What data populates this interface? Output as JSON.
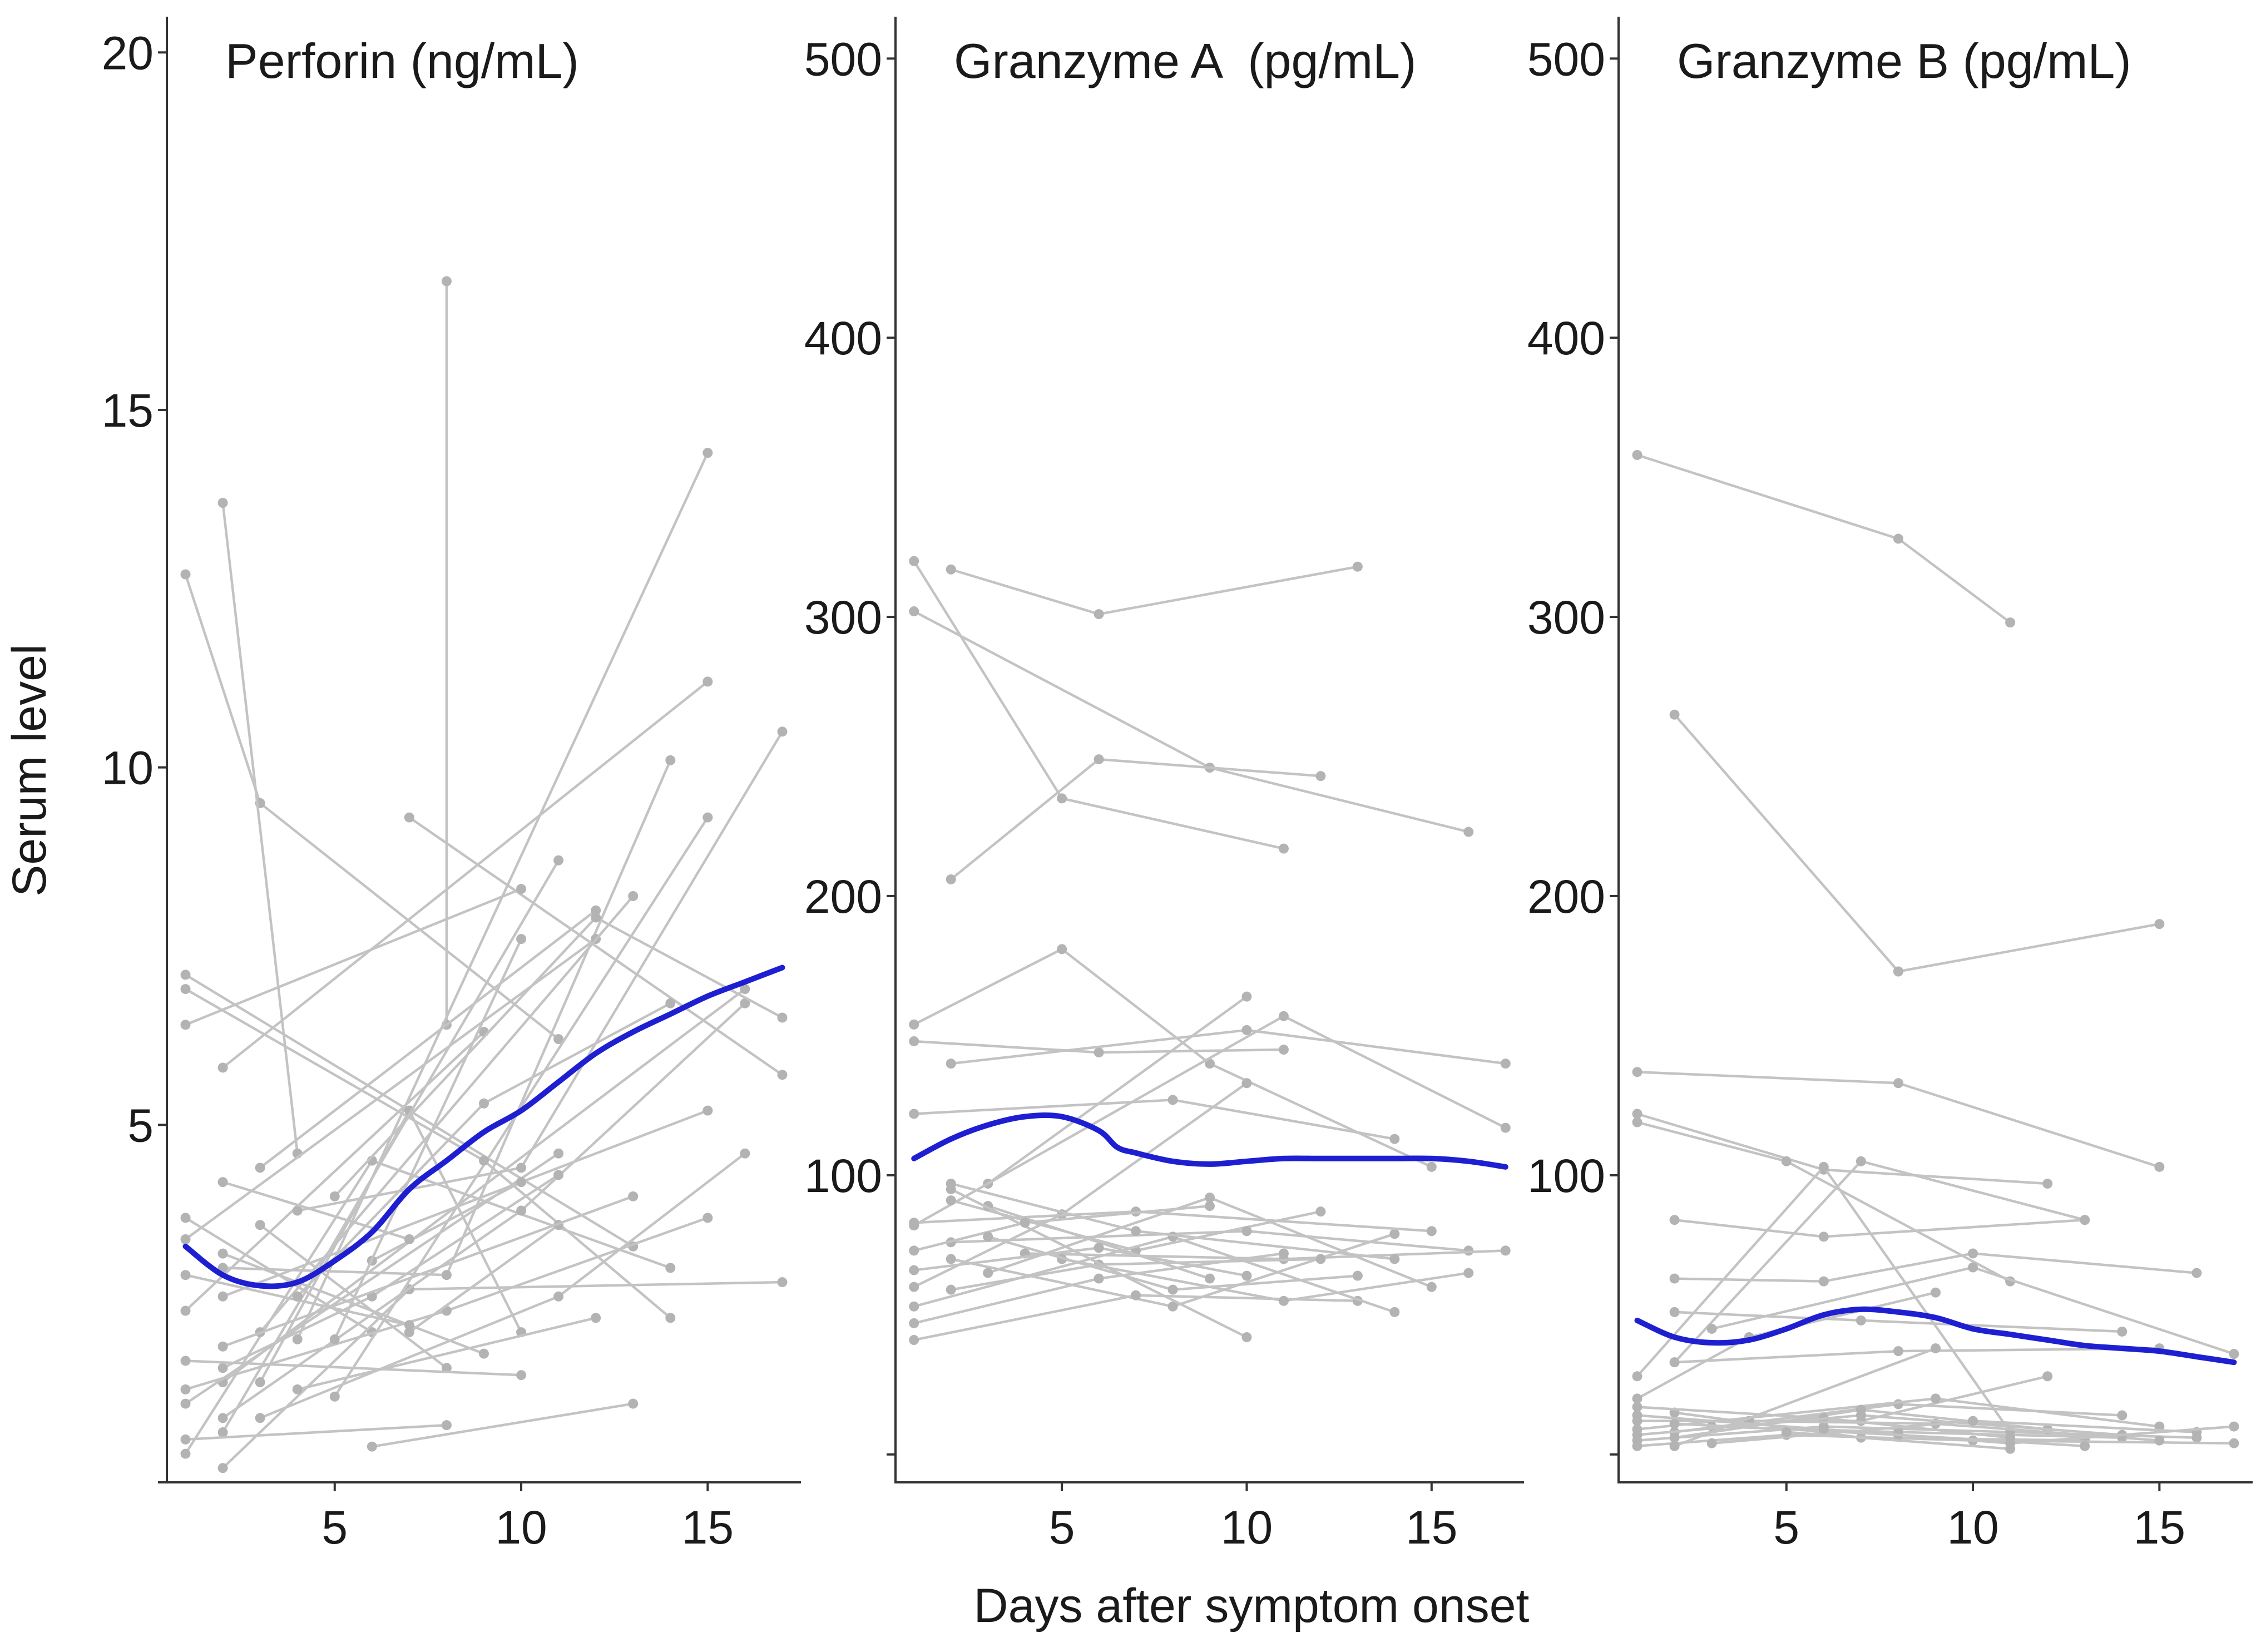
{
  "colors": {
    "subject": "#c3c3c3",
    "point": "#b3b3b3",
    "trend": "#1f1fd2",
    "axis": "#333333"
  },
  "figure": {
    "ylabel": "Serum level",
    "xlabel": "Days after symptom onset"
  },
  "chart_data": [
    {
      "type": "line",
      "title": "Perforin (ng/mL)",
      "ylim": [
        0,
        20.5
      ],
      "xlim": [
        0.5,
        17.5
      ],
      "yticks": [
        5,
        10,
        15,
        20
      ],
      "yminor": [
        0
      ],
      "xticks": [
        5,
        10,
        15
      ],
      "trend": {
        "name": "LOESS",
        "x": [
          1,
          2,
          3,
          4,
          5,
          6,
          7,
          8,
          9,
          10,
          11,
          12,
          13,
          14,
          15,
          16,
          17
        ],
        "y": [
          3.3,
          2.9,
          2.75,
          2.8,
          3.1,
          3.5,
          4.1,
          4.5,
          4.9,
          5.2,
          5.6,
          6.0,
          6.3,
          6.55,
          6.8,
          7.0,
          7.2
        ]
      },
      "series": [
        {
          "x": [
            1,
            3,
            11
          ],
          "y": [
            12.7,
            9.5,
            6.2
          ]
        },
        {
          "x": [
            2,
            4
          ],
          "y": [
            13.7,
            4.6
          ]
        },
        {
          "x": [
            8,
            8
          ],
          "y": [
            16.8,
            6.4
          ]
        },
        {
          "x": [
            4,
            15
          ],
          "y": [
            2.0,
            14.4
          ]
        },
        {
          "x": [
            7,
            17
          ],
          "y": [
            9.3,
            5.7
          ]
        },
        {
          "x": [
            1,
            13
          ],
          "y": [
            7.1,
            3.3
          ]
        },
        {
          "x": [
            1,
            10
          ],
          "y": [
            6.4,
            8.3
          ]
        },
        {
          "x": [
            2,
            15
          ],
          "y": [
            5.8,
            11.2
          ]
        },
        {
          "x": [
            1,
            6
          ],
          "y": [
            3.7,
            2.1
          ]
        },
        {
          "x": [
            2,
            8,
            14
          ],
          "y": [
            3.0,
            2.9,
            10.1
          ]
        },
        {
          "x": [
            1,
            9
          ],
          "y": [
            2.4,
            6.3
          ]
        },
        {
          "x": [
            2,
            16
          ],
          "y": [
            1.4,
            6.9
          ]
        },
        {
          "x": [
            3,
            12
          ],
          "y": [
            4.4,
            8.0
          ]
        },
        {
          "x": [
            1,
            6,
            14
          ],
          "y": [
            0.4,
            4.5,
            3.0
          ]
        },
        {
          "x": [
            2,
            7,
            17
          ],
          "y": [
            0.2,
            2.7,
            2.8
          ]
        },
        {
          "x": [
            1,
            11
          ],
          "y": [
            1.1,
            4.6
          ]
        },
        {
          "x": [
            3,
            7,
            10
          ],
          "y": [
            1.4,
            5.2,
            2.1
          ]
        },
        {
          "x": [
            2,
            11
          ],
          "y": [
            0.7,
            8.7
          ]
        },
        {
          "x": [
            1,
            8,
            15
          ],
          "y": [
            1.3,
            2.4,
            3.7
          ]
        },
        {
          "x": [
            4,
            10,
            17
          ],
          "y": [
            3.8,
            4.4,
            10.5
          ]
        },
        {
          "x": [
            2,
            9
          ],
          "y": [
            3.2,
            1.8
          ]
        },
        {
          "x": [
            1,
            12
          ],
          "y": [
            3.4,
            7.6
          ]
        },
        {
          "x": [
            3,
            13
          ],
          "y": [
            2.1,
            8.2
          ]
        },
        {
          "x": [
            5,
            15
          ],
          "y": [
            1.2,
            9.3
          ]
        },
        {
          "x": [
            2,
            10,
            16
          ],
          "y": [
            0.9,
            3.8,
            6.7
          ]
        },
        {
          "x": [
            6,
            13
          ],
          "y": [
            0.5,
            1.1
          ]
        },
        {
          "x": [
            1,
            7
          ],
          "y": [
            2.9,
            2.2
          ]
        },
        {
          "x": [
            4,
            9,
            14
          ],
          "y": [
            2.6,
            5.3,
            6.7
          ]
        },
        {
          "x": [
            2,
            6,
            11
          ],
          "y": [
            1.6,
            2.6,
            4.3
          ]
        },
        {
          "x": [
            3,
            8
          ],
          "y": [
            3.6,
            1.6
          ]
        },
        {
          "x": [
            1,
            10
          ],
          "y": [
            1.7,
            1.5
          ]
        },
        {
          "x": [
            5,
            12,
            17
          ],
          "y": [
            4.0,
            7.9,
            6.5
          ]
        },
        {
          "x": [
            2,
            15
          ],
          "y": [
            2.6,
            5.2
          ]
        },
        {
          "x": [
            1,
            8
          ],
          "y": [
            0.6,
            0.8
          ]
        },
        {
          "x": [
            3,
            11,
            16
          ],
          "y": [
            0.9,
            2.6,
            4.6
          ]
        },
        {
          "x": [
            6,
            10
          ],
          "y": [
            3.1,
            4.2
          ]
        },
        {
          "x": [
            1,
            9,
            14
          ],
          "y": [
            6.9,
            4.5,
            2.3
          ]
        },
        {
          "x": [
            2,
            7
          ],
          "y": [
            4.2,
            3.4
          ]
        },
        {
          "x": [
            4,
            12
          ],
          "y": [
            1.3,
            2.3
          ]
        },
        {
          "x": [
            5,
            10
          ],
          "y": [
            2.0,
            7.6
          ]
        },
        {
          "x": [
            7,
            11
          ],
          "y": [
            2.1,
            3.6
          ]
        },
        {
          "x": [
            2,
            13
          ],
          "y": [
            1.9,
            4.0
          ]
        }
      ]
    },
    {
      "type": "line",
      "title": "Granzyme A  (pg/mL)",
      "ylim": [
        -10,
        515
      ],
      "xlim": [
        0.5,
        17.5
      ],
      "yticks": [
        100,
        200,
        300,
        400,
        500
      ],
      "yminor": [
        0
      ],
      "xticks": [
        5,
        10,
        15
      ],
      "trend": {
        "name": "LOESS",
        "x": [
          1,
          2,
          3,
          4,
          5,
          6,
          6.5,
          7,
          8,
          9,
          10,
          11,
          12,
          13,
          14,
          15,
          16,
          17
        ],
        "y": [
          106,
          113,
          118,
          121,
          121,
          116,
          110,
          108,
          105,
          104,
          105,
          106,
          106,
          106,
          106,
          106,
          105,
          103
        ]
      },
      "series": [
        {
          "x": [
            1,
            5,
            11
          ],
          "y": [
            320,
            235,
            217
          ]
        },
        {
          "x": [
            2,
            6,
            13
          ],
          "y": [
            317,
            301,
            318
          ]
        },
        {
          "x": [
            1,
            9,
            16
          ],
          "y": [
            302,
            246,
            223
          ]
        },
        {
          "x": [
            2,
            6,
            12
          ],
          "y": [
            206,
            249,
            243
          ]
        },
        {
          "x": [
            1,
            5,
            9,
            15
          ],
          "y": [
            154,
            181,
            140,
            103
          ]
        },
        {
          "x": [
            1,
            6,
            11
          ],
          "y": [
            148,
            144,
            145
          ]
        },
        {
          "x": [
            2,
            10,
            17
          ],
          "y": [
            140,
            152,
            140
          ]
        },
        {
          "x": [
            1,
            8,
            14
          ],
          "y": [
            122,
            127,
            113
          ]
        },
        {
          "x": [
            3,
            10
          ],
          "y": [
            97,
            164
          ]
        },
        {
          "x": [
            1,
            11,
            17
          ],
          "y": [
            82,
            157,
            117
          ]
        },
        {
          "x": [
            2,
            7,
            12
          ],
          "y": [
            91,
            73,
            87
          ]
        },
        {
          "x": [
            1,
            5,
            10
          ],
          "y": [
            60,
            86,
            133
          ]
        },
        {
          "x": [
            2,
            8,
            14
          ],
          "y": [
            70,
            53,
            79
          ]
        },
        {
          "x": [
            1,
            6,
            11
          ],
          "y": [
            47,
            63,
            72
          ]
        },
        {
          "x": [
            3,
            9,
            15
          ],
          "y": [
            65,
            92,
            60
          ]
        },
        {
          "x": [
            1,
            7,
            13
          ],
          "y": [
            41,
            57,
            55
          ]
        },
        {
          "x": [
            2,
            10,
            16
          ],
          "y": [
            76,
            80,
            73
          ]
        },
        {
          "x": [
            4,
            11,
            17
          ],
          "y": [
            72,
            70,
            73
          ]
        },
        {
          "x": [
            1,
            8,
            14
          ],
          "y": [
            53,
            78,
            51
          ]
        },
        {
          "x": [
            2,
            6,
            12
          ],
          "y": [
            59,
            68,
            70
          ]
        },
        {
          "x": [
            3,
            9
          ],
          "y": [
            89,
            63
          ]
        },
        {
          "x": [
            1,
            7,
            15
          ],
          "y": [
            83,
            87,
            80
          ]
        },
        {
          "x": [
            2,
            10
          ],
          "y": [
            95,
            42
          ]
        },
        {
          "x": [
            5,
            11,
            16
          ],
          "y": [
            70,
            55,
            65
          ]
        },
        {
          "x": [
            1,
            4,
            9
          ],
          "y": [
            73,
            83,
            89
          ]
        },
        {
          "x": [
            3,
            8,
            13
          ],
          "y": [
            78,
            59,
            64
          ]
        },
        {
          "x": [
            2,
            7,
            14
          ],
          "y": [
            97,
            80,
            70
          ]
        },
        {
          "x": [
            1,
            6,
            10
          ],
          "y": [
            66,
            74,
            64
          ]
        }
      ]
    },
    {
      "type": "line",
      "title": "Granzyme B (pg/mL)",
      "ylim": [
        -10,
        515
      ],
      "xlim": [
        0.5,
        17.5
      ],
      "yticks": [
        100,
        200,
        300,
        400,
        500
      ],
      "yminor": [
        0
      ],
      "xticks": [
        5,
        10,
        15
      ],
      "trend": {
        "name": "LOESS",
        "x": [
          1,
          2,
          3,
          4,
          5,
          6,
          7,
          8,
          9,
          10,
          11,
          12,
          13,
          14,
          15,
          16,
          17
        ],
        "y": [
          48,
          42,
          40,
          41,
          45,
          50,
          52,
          51,
          49,
          45,
          43,
          41,
          39,
          38,
          37,
          35,
          33
        ]
      },
      "series": [
        {
          "x": [
            1,
            8,
            11
          ],
          "y": [
            358,
            328,
            298
          ]
        },
        {
          "x": [
            2,
            8
          ],
          "y": [
            265,
            173
          ]
        },
        {
          "x": [
            8,
            15
          ],
          "y": [
            173,
            190
          ]
        },
        {
          "x": [
            1,
            8,
            15
          ],
          "y": [
            137,
            133,
            103
          ]
        },
        {
          "x": [
            1,
            6,
            12
          ],
          "y": [
            122,
            102,
            97
          ]
        },
        {
          "x": [
            1,
            5,
            11
          ],
          "y": [
            119,
            105,
            62
          ]
        },
        {
          "x": [
            2,
            7,
            13
          ],
          "y": [
            33,
            105,
            84
          ]
        },
        {
          "x": [
            2,
            6,
            13
          ],
          "y": [
            84,
            78,
            84
          ]
        },
        {
          "x": [
            2,
            6,
            10,
            16
          ],
          "y": [
            63,
            62,
            72,
            65
          ]
        },
        {
          "x": [
            2,
            7,
            14
          ],
          "y": [
            51,
            48,
            44
          ]
        },
        {
          "x": [
            1,
            6,
            11
          ],
          "y": [
            28,
            103,
            8
          ]
        },
        {
          "x": [
            2,
            8,
            15
          ],
          "y": [
            33,
            37,
            38
          ]
        },
        {
          "x": [
            1,
            4,
            9
          ],
          "y": [
            20,
            42,
            58
          ]
        },
        {
          "x": [
            3,
            10,
            17
          ],
          "y": [
            45,
            67,
            36
          ]
        },
        {
          "x": [
            1,
            7,
            12
          ],
          "y": [
            12,
            12,
            28
          ]
        },
        {
          "x": [
            2,
            8,
            14
          ],
          "y": [
            8,
            18,
            14
          ]
        },
        {
          "x": [
            1,
            6,
            11,
            16
          ],
          "y": [
            5,
            10,
            8,
            6
          ]
        },
        {
          "x": [
            2,
            7,
            13
          ],
          "y": [
            15,
            6,
            5
          ]
        },
        {
          "x": [
            1,
            9,
            15
          ],
          "y": [
            9,
            20,
            10
          ]
        },
        {
          "x": [
            3,
            8,
            14
          ],
          "y": [
            10,
            8,
            6
          ]
        },
        {
          "x": [
            1,
            5,
            10,
            17
          ],
          "y": [
            3,
            7,
            5,
            4
          ]
        },
        {
          "x": [
            2,
            7,
            12
          ],
          "y": [
            6,
            16,
            9
          ]
        },
        {
          "x": [
            1,
            6,
            11
          ],
          "y": [
            17,
            13,
            6
          ]
        },
        {
          "x": [
            4,
            9,
            15
          ],
          "y": [
            12,
            11,
            5
          ]
        },
        {
          "x": [
            2,
            8,
            13
          ],
          "y": [
            11,
            7,
            3
          ]
        },
        {
          "x": [
            1,
            7,
            14
          ],
          "y": [
            7,
            14,
            7
          ]
        },
        {
          "x": [
            3,
            10,
            16
          ],
          "y": [
            4,
            12,
            8
          ]
        },
        {
          "x": [
            1,
            6,
            11,
            17
          ],
          "y": [
            14,
            9,
            4,
            10
          ]
        },
        {
          "x": [
            2,
            9
          ],
          "y": [
            3,
            38
          ]
        },
        {
          "x": [
            5,
            11
          ],
          "y": [
            8,
            2
          ]
        }
      ]
    }
  ]
}
